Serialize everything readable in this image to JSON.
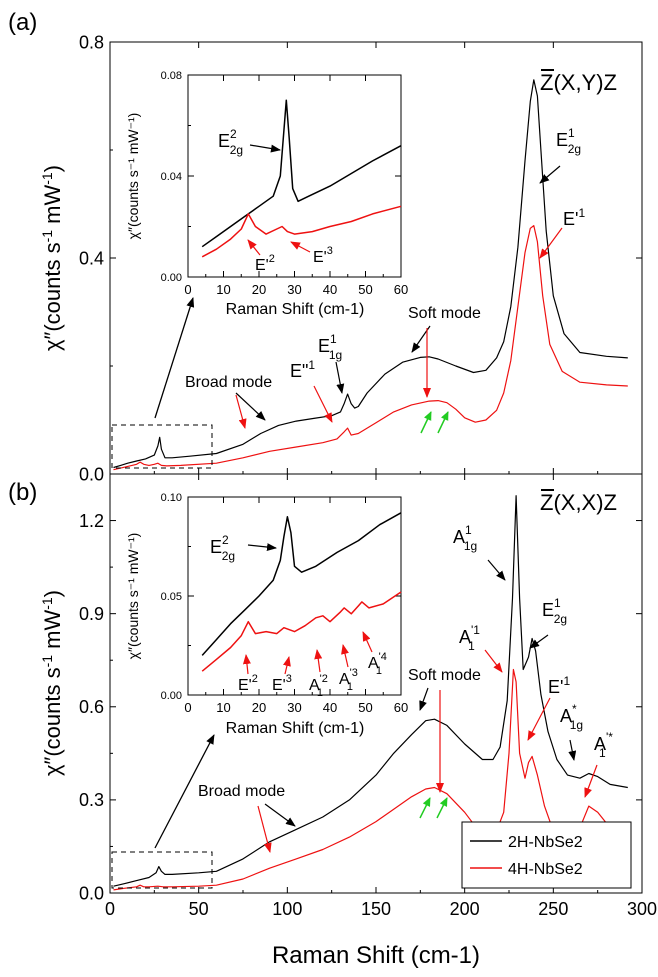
{
  "chart_data": [
    {
      "panel_label": "(a)",
      "type": "line",
      "geometry_note": "Z-bar (X,Y) Z scattering",
      "geometry_title": "Z(X,Y)Z",
      "ylabel_main": "χ″(counts s",
      "ylabel_sup1": "-1",
      "ylabel_mid": " mW",
      "ylabel_sup2": "-1",
      "ylabel_end": ")",
      "xlim": [
        0,
        300
      ],
      "ylim": [
        0,
        0.8
      ],
      "yticks": [
        "0.0",
        "0.4",
        "0.8"
      ],
      "series": [
        {
          "name": "2H-NbSe2",
          "color": "#000000",
          "x": [
            2,
            6,
            10,
            15,
            20,
            25,
            27,
            28,
            29,
            31,
            35,
            45,
            60,
            75,
            85,
            95,
            105,
            115,
            125,
            130,
            132,
            134,
            136,
            138,
            140,
            145,
            155,
            165,
            175,
            180,
            185,
            195,
            205,
            212,
            218,
            222,
            226,
            230,
            234,
            237,
            239,
            241,
            243,
            246,
            250,
            256,
            265,
            280,
            292
          ],
          "y": [
            0.012,
            0.016,
            0.02,
            0.024,
            0.028,
            0.035,
            0.052,
            0.068,
            0.046,
            0.03,
            0.03,
            0.033,
            0.038,
            0.055,
            0.075,
            0.09,
            0.098,
            0.103,
            0.108,
            0.115,
            0.13,
            0.148,
            0.13,
            0.122,
            0.125,
            0.15,
            0.185,
            0.207,
            0.216,
            0.217,
            0.213,
            0.2,
            0.188,
            0.192,
            0.215,
            0.245,
            0.31,
            0.42,
            0.58,
            0.69,
            0.73,
            0.7,
            0.6,
            0.45,
            0.33,
            0.26,
            0.225,
            0.218,
            0.215
          ]
        },
        {
          "name": "4H-NbSe2",
          "color": "#ee1111",
          "x": [
            2,
            6,
            10,
            15,
            17,
            19,
            22,
            25,
            27,
            29,
            32,
            40,
            60,
            75,
            90,
            105,
            120,
            128,
            132,
            134,
            136,
            140,
            150,
            160,
            170,
            180,
            185,
            190,
            195,
            200,
            206,
            212,
            218,
            222,
            226,
            230,
            234,
            237,
            239,
            241,
            244,
            248,
            255,
            265,
            280,
            292
          ],
          "y": [
            0.008,
            0.011,
            0.014,
            0.018,
            0.022,
            0.018,
            0.016,
            0.018,
            0.02,
            0.016,
            0.015,
            0.016,
            0.02,
            0.03,
            0.042,
            0.05,
            0.058,
            0.065,
            0.078,
            0.085,
            0.072,
            0.075,
            0.095,
            0.115,
            0.128,
            0.135,
            0.136,
            0.132,
            0.12,
            0.104,
            0.096,
            0.1,
            0.118,
            0.15,
            0.21,
            0.31,
            0.41,
            0.455,
            0.46,
            0.43,
            0.33,
            0.24,
            0.19,
            0.17,
            0.165,
            0.163
          ]
        }
      ],
      "annotations": [
        {
          "text": "Broad mode",
          "x": 72,
          "y": 0.125
        },
        {
          "text": "Soft mode",
          "x": 178,
          "y": 0.265
        },
        {
          "text": "E",
          "sup": "1",
          "sub": "1g",
          "x": 128,
          "y": 0.165
        },
        {
          "text": "E\"",
          "sup": "1",
          "x": 108,
          "y": 0.14
        },
        {
          "text": "E",
          "sup": "1",
          "sub": "2g",
          "x": 257,
          "y": 0.57
        },
        {
          "text": "E'",
          "sup": "1",
          "x": 262,
          "y": 0.5
        }
      ],
      "inset": {
        "xlabel": "Raman Shift (cm-1)",
        "ylabel": "χ″(counts s⁻¹ mW⁻¹)",
        "xlim": [
          0,
          60
        ],
        "ylim": [
          0,
          0.08
        ],
        "yticks": [
          "0.00",
          "0.04",
          "0.08"
        ],
        "xticks": [
          "0",
          "10",
          "20",
          "30",
          "40",
          "50",
          "60"
        ],
        "series": [
          {
            "name": "2H-NbSe2",
            "color": "#000000",
            "x": [
              4,
              8,
              12,
              16,
              20,
              24,
              26,
              27,
              27.7,
              28.5,
              29.5,
              31,
              34,
              40,
              46,
              52,
              60
            ],
            "y": [
              0.012,
              0.016,
              0.02,
              0.024,
              0.028,
              0.032,
              0.04,
              0.058,
              0.07,
              0.055,
              0.035,
              0.03,
              0.032,
              0.036,
              0.041,
              0.046,
              0.052
            ]
          },
          {
            "name": "4H-NbSe2",
            "color": "#ee1111",
            "x": [
              4,
              8,
              12,
              15,
              17,
              19,
              22,
              25,
              26.5,
              28,
              30,
              35,
              40,
              46,
              52,
              60
            ],
            "y": [
              0.008,
              0.011,
              0.015,
              0.019,
              0.025,
              0.02,
              0.017,
              0.019,
              0.02,
              0.018,
              0.017,
              0.018,
              0.02,
              0.022,
              0.025,
              0.028
            ]
          }
        ],
        "labels": [
          {
            "text": "E",
            "sup": "2",
            "sub": "2g"
          },
          {
            "text": "E'",
            "sup": "2"
          },
          {
            "text": "E'",
            "sup": "3"
          }
        ]
      }
    },
    {
      "panel_label": "(b)",
      "type": "line",
      "geometry_title": "Z(X,X)Z",
      "xlabel": "Raman Shift (cm-1)",
      "xlim": [
        0,
        300
      ],
      "ylim": [
        0,
        1.35
      ],
      "yticks": [
        "0.0",
        "0.3",
        "0.6",
        "0.9",
        "1.2"
      ],
      "xticks": [
        "0",
        "50",
        "100",
        "150",
        "200",
        "250",
        "300"
      ],
      "series": [
        {
          "name": "2H-NbSe2",
          "color": "#000000",
          "x": [
            2,
            8,
            15,
            22,
            26,
            27.5,
            29,
            31,
            35,
            50,
            60,
            75,
            90,
            105,
            120,
            135,
            150,
            160,
            170,
            178,
            183,
            190,
            200,
            210,
            216,
            220,
            224,
            227,
            229,
            231,
            233,
            236,
            238,
            240,
            243,
            247,
            252,
            258,
            265,
            270,
            275,
            282,
            292
          ],
          "y": [
            0.022,
            0.03,
            0.04,
            0.05,
            0.065,
            0.085,
            0.07,
            0.06,
            0.06,
            0.065,
            0.07,
            0.11,
            0.165,
            0.205,
            0.245,
            0.3,
            0.38,
            0.45,
            0.51,
            0.555,
            0.56,
            0.54,
            0.48,
            0.43,
            0.43,
            0.47,
            0.62,
            0.95,
            1.28,
            0.95,
            0.72,
            0.76,
            0.82,
            0.78,
            0.64,
            0.52,
            0.43,
            0.38,
            0.37,
            0.385,
            0.375,
            0.35,
            0.34
          ]
        },
        {
          "name": "4H-NbSe2",
          "color": "#ee1111",
          "x": [
            2,
            8,
            15,
            17,
            19,
            22,
            27,
            30,
            35,
            50,
            60,
            75,
            90,
            105,
            120,
            135,
            150,
            160,
            170,
            178,
            183,
            190,
            200,
            206,
            212,
            218,
            222,
            225,
            227.5,
            229,
            231,
            234,
            236,
            238,
            241,
            245,
            250,
            258,
            265,
            270,
            275,
            282,
            292
          ],
          "y": [
            0.01,
            0.015,
            0.02,
            0.025,
            0.02,
            0.02,
            0.022,
            0.02,
            0.02,
            0.022,
            0.025,
            0.045,
            0.08,
            0.11,
            0.14,
            0.18,
            0.23,
            0.27,
            0.31,
            0.335,
            0.34,
            0.32,
            0.26,
            0.215,
            0.195,
            0.2,
            0.26,
            0.45,
            0.72,
            0.68,
            0.45,
            0.37,
            0.42,
            0.44,
            0.38,
            0.28,
            0.2,
            0.18,
            0.21,
            0.28,
            0.26,
            0.21,
            0.19
          ]
        }
      ],
      "annotations": [
        {
          "text": "Broad mode",
          "x": 60,
          "y": 0.42
        },
        {
          "text": "Soft mode",
          "x": 173,
          "y": 0.66
        },
        {
          "text": "A",
          "sup": "1",
          "sub": "1g",
          "x": 210,
          "y": 1.08
        },
        {
          "text": "A",
          "sup": "'1",
          "sub": "1",
          "x": 200,
          "y": 0.81
        },
        {
          "text": "E",
          "sup": "1",
          "sub": "2g",
          "x": 246,
          "y": 0.88
        },
        {
          "text": "E'",
          "sup": "1",
          "x": 250,
          "y": 0.7
        },
        {
          "text": "A",
          "sup": "*",
          "sub": "1g",
          "x": 268,
          "y": 0.5
        },
        {
          "text": "A",
          "sup": "'*",
          "sub": "1",
          "x": 283,
          "y": 0.43
        }
      ],
      "legend": {
        "placement": "bottom-right",
        "entries": [
          "2H-NbSe2",
          "4H-NbSe2"
        ]
      },
      "inset": {
        "xlabel": "Raman Shift (cm-1)",
        "ylabel": "χ″(counts s⁻¹ mW⁻¹)",
        "xlim": [
          0,
          60
        ],
        "ylim": [
          0,
          0.1
        ],
        "yticks": [
          "0.00",
          "0.05",
          "0.10"
        ],
        "xticks": [
          "0",
          "10",
          "20",
          "30",
          "40",
          "50",
          "60"
        ],
        "series": [
          {
            "name": "2H-NbSe2",
            "color": "#000000",
            "x": [
              4,
              8,
              12,
              16,
              20,
              24,
              26,
              27,
              28,
              29,
              30,
              32,
              36,
              42,
              48,
              54,
              60
            ],
            "y": [
              0.02,
              0.028,
              0.036,
              0.043,
              0.05,
              0.058,
              0.068,
              0.08,
              0.09,
              0.082,
              0.065,
              0.062,
              0.065,
              0.072,
              0.078,
              0.086,
              0.092
            ]
          },
          {
            "name": "4H-NbSe2",
            "color": "#ee1111",
            "x": [
              4,
              8,
              12,
              15,
              17,
              19,
              22,
              25,
              27,
              30,
              33,
              36,
              38,
              40,
              43,
              44,
              46,
              48,
              49,
              51,
              55,
              60
            ],
            "y": [
              0.012,
              0.018,
              0.024,
              0.03,
              0.037,
              0.031,
              0.032,
              0.031,
              0.034,
              0.032,
              0.035,
              0.039,
              0.04,
              0.037,
              0.042,
              0.044,
              0.041,
              0.045,
              0.047,
              0.044,
              0.046,
              0.052
            ]
          }
        ],
        "labels": [
          {
            "text": "E",
            "sup": "2",
            "sub": "2g"
          },
          {
            "text": "E'",
            "sup": "2"
          },
          {
            "text": "E'",
            "sup": "3"
          },
          {
            "text": "A",
            "sup": "'2",
            "sub": "1"
          },
          {
            "text": "A",
            "sup": "'3",
            "sub": "1"
          },
          {
            "text": "A",
            "sup": "'4",
            "sub": "1"
          }
        ]
      }
    }
  ],
  "shared_xlabel": "Raman Shift (cm-1)"
}
